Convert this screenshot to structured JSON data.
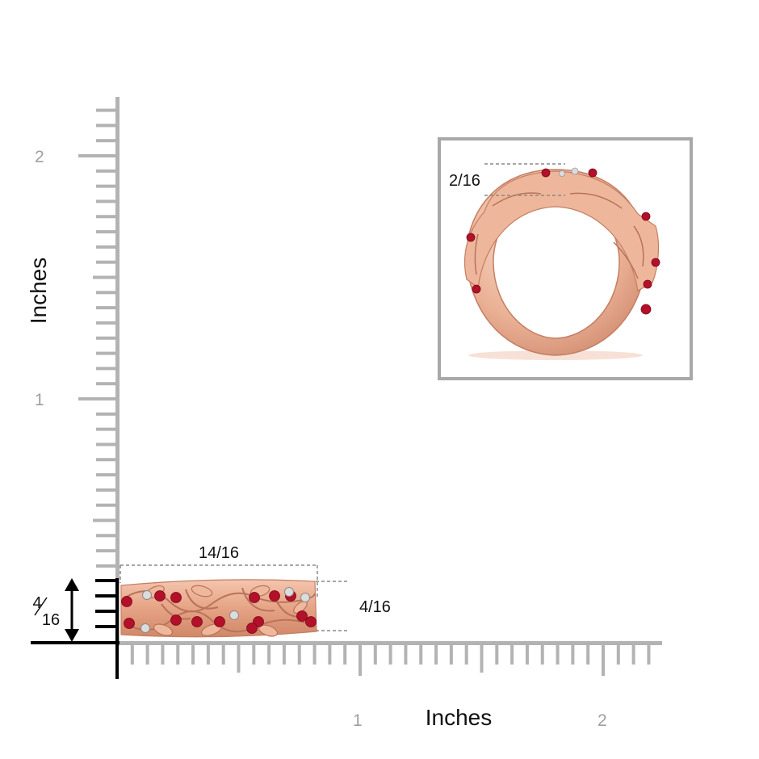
{
  "y_axis": {
    "title": "Inches",
    "tick_labels": [
      "1",
      "2"
    ]
  },
  "x_axis": {
    "title": "Inches",
    "tick_labels": [
      "1",
      "2"
    ]
  },
  "dimensions": {
    "ring_width": "14/16",
    "ring_height": "4/16",
    "side_height_numerator": "4",
    "side_height_denominator": "16",
    "inset_thickness": "2/16"
  },
  "colors": {
    "ruler": "#b3b3b3",
    "axis": "#000000",
    "rose_gold": "#e9a98a",
    "rose_gold_dark": "#c9826a",
    "ruby": "#b3102a",
    "diamond": "#dcdcdc",
    "dash": "#888888"
  },
  "icons": {
    "ring_side": "rose-gold-vine-band-side-view",
    "ring_front": "rose-gold-vine-band-front-view",
    "double_arrow": "vertical-double-arrow-icon"
  }
}
